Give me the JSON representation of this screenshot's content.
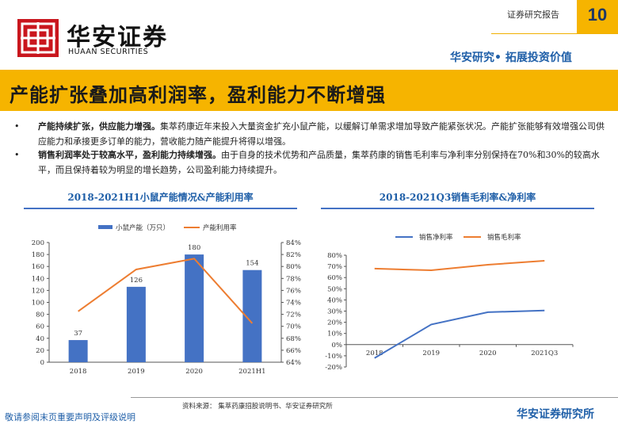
{
  "header": {
    "logo_cn": "华安证券",
    "logo_en": "HUAAN SECURITIES",
    "doc_type": "证券研究报告",
    "page_number": "10",
    "tagline": "华安研究• 拓展投资价值",
    "brand_color": "#c9161d",
    "accent_color": "#f6b400"
  },
  "title": "产能扩张叠加高利润率，盈利能力不断增强",
  "bullets": [
    {
      "bold": "产能持续扩张，供应能力增强。",
      "text": "集萃药康近年来投入大量资金扩充小鼠产能，以缓解订单需求增加导致产能紧张状况。产能扩张能够有效增强公司供应能力和承接更多订单的能力，营收能力随产能提升将得以增强。"
    },
    {
      "bold": "销售利润率处于较高水平，盈利能力持续增强。",
      "text": "由于自身的技术优势和产品质量，集萃药康的销售毛利率与净利率分别保持在70%和30%的较高水平，而且保持着较为明显的增长趋势，公司盈利能力持续提升。"
    }
  ],
  "chart_data": [
    {
      "type": "bar",
      "title": "2018-2021H1小鼠产能情况&产能利用率",
      "categories": [
        "2018",
        "2019",
        "2020",
        "2021H1"
      ],
      "series": [
        {
          "name": "小鼠产能（万只）",
          "type": "bar",
          "axis": "left",
          "color": "#4472c4",
          "values": [
            37,
            126,
            180,
            154
          ]
        },
        {
          "name": "产能利用率",
          "type": "line",
          "axis": "right",
          "color": "#ed7d31",
          "values": [
            72.5,
            79.5,
            81.3,
            70.5
          ]
        }
      ],
      "y_left": {
        "min": 0,
        "max": 200,
        "ticks": [
          "0",
          "20",
          "40",
          "60",
          "80",
          "100",
          "120",
          "140",
          "160",
          "180",
          "200"
        ]
      },
      "y_right": {
        "min": 64,
        "max": 84,
        "ticks": [
          "64%",
          "66%",
          "68%",
          "70%",
          "72%",
          "74%",
          "76%",
          "78%",
          "80%",
          "82%",
          "84%"
        ]
      },
      "data_labels": [
        "37",
        "126",
        "180",
        "154"
      ],
      "legend_position": "top",
      "grid": false
    },
    {
      "type": "line",
      "title": "2018-2021Q3销售毛利率&净利率",
      "categories": [
        "2018",
        "2019",
        "2020",
        "2021Q3"
      ],
      "series": [
        {
          "name": "销售净利率",
          "color": "#4472c4",
          "values": [
            -12,
            18,
            29,
            30.5
          ]
        },
        {
          "name": "销售毛利率",
          "color": "#ed7d31",
          "values": [
            68,
            66.5,
            71.5,
            75
          ]
        }
      ],
      "y": {
        "min": -20,
        "max": 80,
        "ticks": [
          "-20%",
          "-10%",
          "0%",
          "10%",
          "20%",
          "30%",
          "40%",
          "50%",
          "60%",
          "70%",
          "80%"
        ]
      },
      "legend_position": "top",
      "grid": false
    }
  ],
  "footer": {
    "source": "资料来源：  集萃药康招股说明书、华安证券研究所",
    "disclaimer": "敬请参阅末页重要声明及评级说明",
    "brand": "华安证券研究所"
  }
}
